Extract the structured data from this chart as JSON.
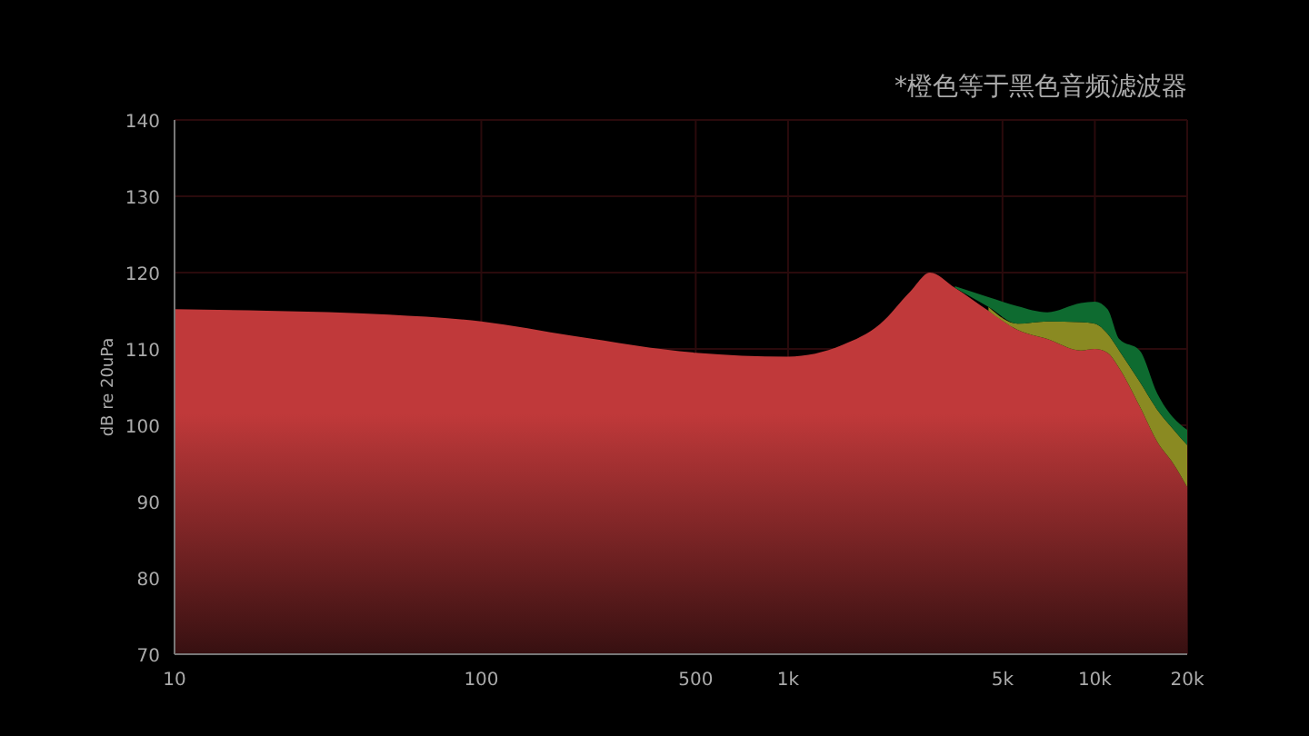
{
  "chart_data": {
    "type": "area",
    "ylabel": "dB re 20uPa",
    "annotations": [
      "*橙色等于黑色音频滤波器"
    ],
    "x": [
      10,
      20,
      50,
      100,
      200,
      500,
      1000,
      1500,
      2000,
      2500,
      2900,
      3500,
      4500,
      5600,
      7000,
      9000,
      10000,
      11000,
      12000,
      14000,
      16000,
      18000,
      20000
    ],
    "series": [
      {
        "color": "#0e6b30",
        "values": [
          null,
          null,
          null,
          null,
          null,
          null,
          null,
          null,
          null,
          null,
          null,
          118.2,
          116.8,
          115.6,
          114.8,
          116.0,
          116.2,
          115.2,
          111.3,
          109.8,
          104.1,
          101.0,
          99.4
        ]
      },
      {
        "color": "#8a8a22",
        "values": [
          null,
          null,
          null,
          null,
          null,
          null,
          null,
          null,
          null,
          null,
          null,
          null,
          115.5,
          113.3,
          113.6,
          113.5,
          113.3,
          112.0,
          109.8,
          105.7,
          102.0,
          99.5,
          97.4
        ]
      },
      {
        "color": "#c0393a",
        "values": [
          115.2,
          115.0,
          114.5,
          113.6,
          111.7,
          109.5,
          109.0,
          110.5,
          113.3,
          117.5,
          120.0,
          118.0,
          115.0,
          112.5,
          111.3,
          109.8,
          110.0,
          109.5,
          107.5,
          102.5,
          97.8,
          95.0,
          91.9
        ]
      }
    ],
    "log": "x",
    "xlim": [
      10,
      20000
    ],
    "xticks": [
      10,
      100,
      500,
      {
        "value": 1000,
        "label": "1k"
      },
      {
        "value": 5000,
        "label": "5k"
      },
      {
        "value": 10000,
        "label": "10k"
      },
      {
        "value": 20000,
        "label": "20k"
      }
    ],
    "ylim": [
      70,
      140
    ],
    "yticks": [
      70,
      80,
      90,
      100,
      110,
      120,
      130,
      140
    ],
    "grid": true
  }
}
